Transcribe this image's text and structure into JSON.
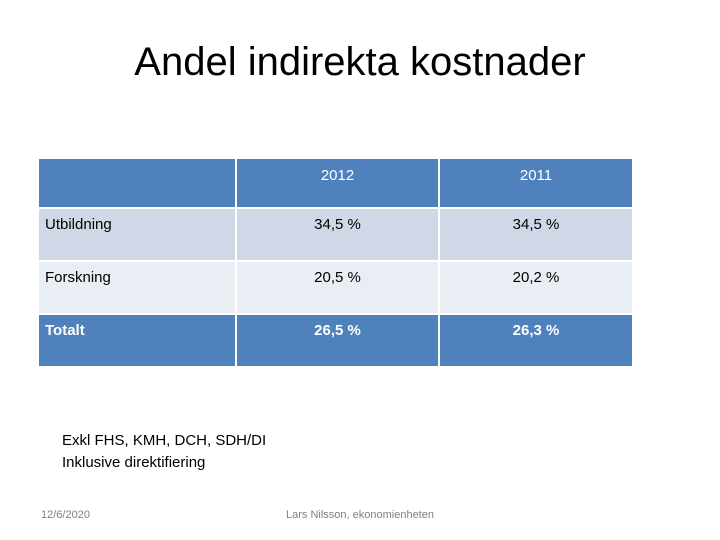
{
  "title": "Andel indirekta kostnader",
  "table": {
    "header": [
      "",
      "2012",
      "2011"
    ],
    "rows": [
      {
        "label": "Utbildning",
        "v2012": "34,5 %",
        "v2011": "34,5 %"
      },
      {
        "label": "Forskning",
        "v2012": "20,5 %",
        "v2011": "20,2 %"
      },
      {
        "label": "Totalt",
        "v2012": "26,5 %",
        "v2011": "26,3 %"
      }
    ]
  },
  "notes": {
    "line1": "Exkl FHS, KMH, DCH, SDH/DI",
    "line2": "Inklusive direktifiering"
  },
  "footer": {
    "date": "12/6/2020",
    "author": "Lars Nilsson, ekonomienheten"
  },
  "colors": {
    "header_bg": "#4f81bd",
    "row_odd_bg": "#d0d8e8",
    "row_even_bg": "#e9edf4"
  }
}
